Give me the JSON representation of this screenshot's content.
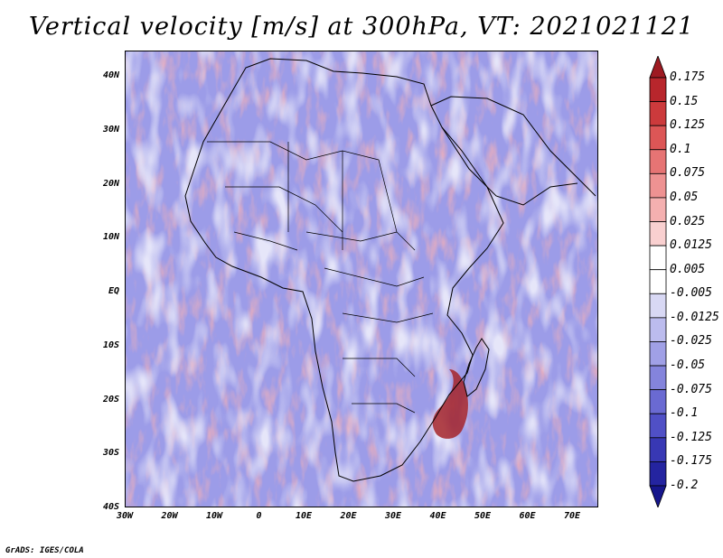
{
  "title": "Vertical velocity [m/s] at 300hPa, VT: 2021021121",
  "credit": "GrADS: IGES/COLA",
  "map": {
    "lat_labels": [
      "40N",
      "30N",
      "20N",
      "10N",
      "EQ",
      "10S",
      "20S",
      "30S",
      "40S"
    ],
    "lon_labels": [
      "30W",
      "20W",
      "10W",
      "0",
      "10E",
      "20E",
      "30E",
      "40E",
      "50E",
      "60E",
      "70E"
    ]
  },
  "colorbar": {
    "labels": [
      "0.175",
      "0.15",
      "0.125",
      "0.1",
      "0.075",
      "0.05",
      "0.025",
      "0.0125",
      "0.005",
      "-0.005",
      "-0.0125",
      "-0.025",
      "-0.05",
      "-0.075",
      "-0.1",
      "-0.125",
      "-0.175",
      "-0.2"
    ],
    "colors": [
      "#9e1a22",
      "#b8262c",
      "#cc3a3c",
      "#dc5656",
      "#e67474",
      "#ee9292",
      "#f4b0b0",
      "#f9d0d0",
      "#ffffff",
      "#ffffff",
      "#d8d8f4",
      "#bcbcee",
      "#a0a0e6",
      "#8484dc",
      "#6a6ad2",
      "#5050c6",
      "#3838b4",
      "#2424a0",
      "#16168c"
    ]
  }
}
